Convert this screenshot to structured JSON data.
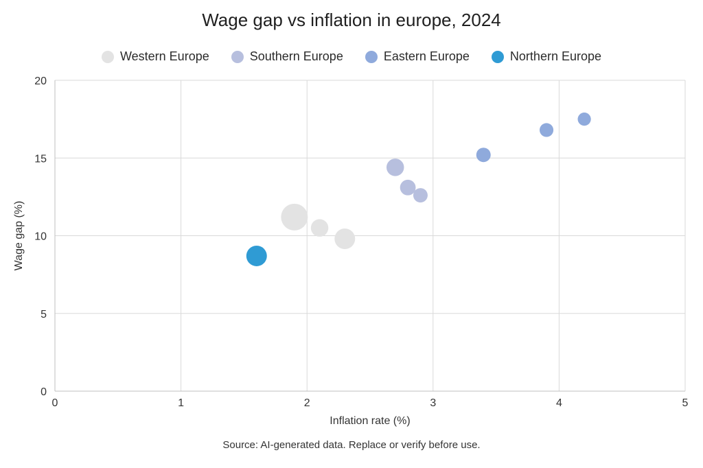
{
  "chart_data": {
    "type": "scatter",
    "title": "Wage gap vs inflation in europe, 2024",
    "xlabel": "Inflation rate (%)",
    "ylabel": "Wage gap (%)",
    "xlim": [
      0,
      5
    ],
    "ylim": [
      0,
      20
    ],
    "xticks": [
      "0",
      "1",
      "2",
      "3",
      "4",
      "5"
    ],
    "yticks": [
      "0",
      "5",
      "10",
      "15",
      "20"
    ],
    "grid": true,
    "legend_position": "top",
    "series": [
      {
        "name": "Western Europe",
        "color": "#e3e3e3",
        "points": [
          {
            "x": 1.9,
            "y": 11.2,
            "size": 3
          },
          {
            "x": 2.1,
            "y": 10.5,
            "size": 1.5
          },
          {
            "x": 2.3,
            "y": 9.8,
            "size": 2
          }
        ]
      },
      {
        "name": "Southern Europe",
        "color": "#b7bfde",
        "points": [
          {
            "x": 2.7,
            "y": 14.4,
            "size": 1.5
          },
          {
            "x": 2.8,
            "y": 13.1,
            "size": 1.2
          },
          {
            "x": 2.9,
            "y": 12.6,
            "size": 1
          }
        ]
      },
      {
        "name": "Eastern Europe",
        "color": "#8faadc",
        "points": [
          {
            "x": 3.4,
            "y": 15.2,
            "size": 1
          },
          {
            "x": 3.9,
            "y": 16.8,
            "size": 0.9
          },
          {
            "x": 4.2,
            "y": 17.5,
            "size": 0.8
          }
        ]
      },
      {
        "name": "Northern Europe",
        "color": "#2f9bd4",
        "points": [
          {
            "x": 1.6,
            "y": 8.7,
            "size": 2
          }
        ]
      }
    ],
    "source": "Source: AI-generated data. Replace or verify before use."
  }
}
